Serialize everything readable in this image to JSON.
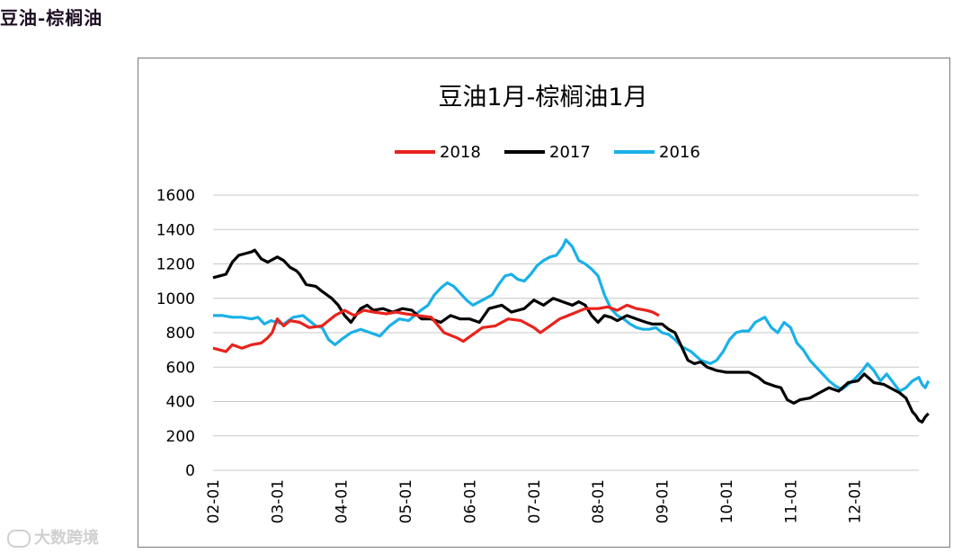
{
  "page": {
    "heading": "豆油-棕榈油",
    "watermark": "大数跨境"
  },
  "chart_data": {
    "type": "line",
    "title": "豆油1月-棕榈油1月",
    "xlabel": "",
    "ylabel": "",
    "ylim": [
      0,
      1600
    ],
    "yticks": [
      0,
      200,
      400,
      600,
      800,
      1000,
      1200,
      1400,
      1600
    ],
    "xlim": [
      0,
      11
    ],
    "xticks": [
      {
        "x": 0,
        "label": "02-01"
      },
      {
        "x": 1,
        "label": "03-01"
      },
      {
        "x": 2,
        "label": "04-01"
      },
      {
        "x": 3,
        "label": "05-01"
      },
      {
        "x": 4,
        "label": "06-01"
      },
      {
        "x": 5,
        "label": "07-01"
      },
      {
        "x": 6,
        "label": "08-01"
      },
      {
        "x": 7,
        "label": "09-01"
      },
      {
        "x": 8,
        "label": "10-01"
      },
      {
        "x": 9,
        "label": "11-01"
      },
      {
        "x": 10,
        "label": "12-01"
      }
    ],
    "grid": true,
    "legend": "top-center",
    "series": [
      {
        "name": "2018",
        "color": "#e8231c",
        "points": [
          [
            0.0,
            710
          ],
          [
            0.1,
            700
          ],
          [
            0.2,
            690
          ],
          [
            0.3,
            730
          ],
          [
            0.45,
            710
          ],
          [
            0.6,
            730
          ],
          [
            0.75,
            740
          ],
          [
            0.85,
            770
          ],
          [
            0.92,
            800
          ],
          [
            1.0,
            880
          ],
          [
            1.1,
            840
          ],
          [
            1.2,
            870
          ],
          [
            1.35,
            860
          ],
          [
            1.5,
            830
          ],
          [
            1.7,
            840
          ],
          [
            1.9,
            900
          ],
          [
            2.05,
            930
          ],
          [
            2.2,
            900
          ],
          [
            2.35,
            930
          ],
          [
            2.5,
            920
          ],
          [
            2.7,
            910
          ],
          [
            2.85,
            920
          ],
          [
            3.0,
            910
          ],
          [
            3.2,
            900
          ],
          [
            3.4,
            890
          ],
          [
            3.6,
            800
          ],
          [
            3.8,
            770
          ],
          [
            3.9,
            750
          ],
          [
            4.05,
            790
          ],
          [
            4.2,
            830
          ],
          [
            4.4,
            840
          ],
          [
            4.6,
            880
          ],
          [
            4.8,
            870
          ],
          [
            5.0,
            830
          ],
          [
            5.1,
            800
          ],
          [
            5.25,
            840
          ],
          [
            5.4,
            880
          ],
          [
            5.6,
            910
          ],
          [
            5.8,
            940
          ],
          [
            6.0,
            940
          ],
          [
            6.15,
            950
          ],
          [
            6.3,
            930
          ],
          [
            6.45,
            960
          ],
          [
            6.6,
            940
          ],
          [
            6.75,
            930
          ],
          [
            6.85,
            920
          ],
          [
            6.95,
            900
          ]
        ]
      },
      {
        "name": "2017",
        "color": "#000000",
        "points": [
          [
            0.0,
            1120
          ],
          [
            0.1,
            1130
          ],
          [
            0.2,
            1140
          ],
          [
            0.3,
            1210
          ],
          [
            0.4,
            1250
          ],
          [
            0.5,
            1260
          ],
          [
            0.6,
            1270
          ],
          [
            0.65,
            1280
          ],
          [
            0.75,
            1230
          ],
          [
            0.85,
            1210
          ],
          [
            1.0,
            1240
          ],
          [
            1.1,
            1220
          ],
          [
            1.2,
            1180
          ],
          [
            1.3,
            1160
          ],
          [
            1.35,
            1140
          ],
          [
            1.45,
            1080
          ],
          [
            1.6,
            1070
          ],
          [
            1.7,
            1040
          ],
          [
            1.85,
            1000
          ],
          [
            1.95,
            960
          ],
          [
            2.05,
            900
          ],
          [
            2.15,
            860
          ],
          [
            2.3,
            940
          ],
          [
            2.4,
            960
          ],
          [
            2.5,
            930
          ],
          [
            2.65,
            940
          ],
          [
            2.8,
            920
          ],
          [
            2.95,
            940
          ],
          [
            3.1,
            930
          ],
          [
            3.25,
            880
          ],
          [
            3.4,
            880
          ],
          [
            3.55,
            860
          ],
          [
            3.7,
            900
          ],
          [
            3.85,
            880
          ],
          [
            4.0,
            880
          ],
          [
            4.15,
            860
          ],
          [
            4.3,
            940
          ],
          [
            4.5,
            960
          ],
          [
            4.65,
            920
          ],
          [
            4.85,
            940
          ],
          [
            5.0,
            990
          ],
          [
            5.15,
            960
          ],
          [
            5.3,
            1000
          ],
          [
            5.45,
            980
          ],
          [
            5.6,
            960
          ],
          [
            5.7,
            980
          ],
          [
            5.8,
            960
          ],
          [
            5.9,
            900
          ],
          [
            6.0,
            860
          ],
          [
            6.1,
            900
          ],
          [
            6.2,
            890
          ],
          [
            6.3,
            870
          ],
          [
            6.45,
            900
          ],
          [
            6.6,
            880
          ],
          [
            6.75,
            860
          ],
          [
            6.85,
            850
          ],
          [
            7.0,
            850
          ],
          [
            7.1,
            820
          ],
          [
            7.2,
            800
          ],
          [
            7.3,
            720
          ],
          [
            7.4,
            640
          ],
          [
            7.5,
            620
          ],
          [
            7.6,
            630
          ],
          [
            7.7,
            600
          ],
          [
            7.85,
            580
          ],
          [
            8.0,
            570
          ],
          [
            8.2,
            570
          ],
          [
            8.35,
            570
          ],
          [
            8.5,
            540
          ],
          [
            8.6,
            510
          ],
          [
            8.75,
            490
          ],
          [
            8.85,
            480
          ],
          [
            8.95,
            410
          ],
          [
            9.05,
            390
          ],
          [
            9.15,
            410
          ],
          [
            9.3,
            420
          ],
          [
            9.45,
            450
          ],
          [
            9.6,
            480
          ],
          [
            9.75,
            460
          ],
          [
            9.9,
            510
          ],
          [
            10.05,
            520
          ],
          [
            10.15,
            560
          ],
          [
            10.3,
            510
          ],
          [
            10.45,
            500
          ],
          [
            10.6,
            470
          ],
          [
            10.7,
            450
          ],
          [
            10.8,
            420
          ],
          [
            10.85,
            380
          ],
          [
            10.9,
            340
          ],
          [
            10.95,
            320
          ],
          [
            11.0,
            290
          ],
          [
            11.05,
            280
          ],
          [
            11.1,
            310
          ],
          [
            11.15,
            330
          ]
        ]
      },
      {
        "name": "2016",
        "color": "#1ab0e8",
        "points": [
          [
            0.0,
            900
          ],
          [
            0.15,
            900
          ],
          [
            0.3,
            890
          ],
          [
            0.45,
            890
          ],
          [
            0.6,
            880
          ],
          [
            0.7,
            890
          ],
          [
            0.8,
            850
          ],
          [
            0.9,
            870
          ],
          [
            1.0,
            860
          ],
          [
            1.1,
            850
          ],
          [
            1.25,
            890
          ],
          [
            1.4,
            900
          ],
          [
            1.5,
            870
          ],
          [
            1.6,
            840
          ],
          [
            1.7,
            830
          ],
          [
            1.8,
            760
          ],
          [
            1.9,
            730
          ],
          [
            2.0,
            760
          ],
          [
            2.15,
            800
          ],
          [
            2.3,
            820
          ],
          [
            2.45,
            800
          ],
          [
            2.6,
            780
          ],
          [
            2.75,
            840
          ],
          [
            2.9,
            880
          ],
          [
            3.05,
            870
          ],
          [
            3.2,
            920
          ],
          [
            3.35,
            960
          ],
          [
            3.45,
            1020
          ],
          [
            3.55,
            1060
          ],
          [
            3.65,
            1090
          ],
          [
            3.75,
            1070
          ],
          [
            3.85,
            1030
          ],
          [
            3.95,
            990
          ],
          [
            4.05,
            960
          ],
          [
            4.15,
            980
          ],
          [
            4.25,
            1000
          ],
          [
            4.35,
            1020
          ],
          [
            4.45,
            1080
          ],
          [
            4.55,
            1130
          ],
          [
            4.65,
            1140
          ],
          [
            4.75,
            1110
          ],
          [
            4.85,
            1100
          ],
          [
            4.95,
            1140
          ],
          [
            5.05,
            1190
          ],
          [
            5.15,
            1220
          ],
          [
            5.25,
            1240
          ],
          [
            5.35,
            1250
          ],
          [
            5.45,
            1300
          ],
          [
            5.5,
            1340
          ],
          [
            5.6,
            1300
          ],
          [
            5.7,
            1220
          ],
          [
            5.8,
            1200
          ],
          [
            5.9,
            1170
          ],
          [
            6.0,
            1130
          ],
          [
            6.1,
            1020
          ],
          [
            6.2,
            940
          ],
          [
            6.3,
            900
          ],
          [
            6.4,
            880
          ],
          [
            6.5,
            850
          ],
          [
            6.6,
            830
          ],
          [
            6.7,
            820
          ],
          [
            6.8,
            820
          ],
          [
            6.9,
            830
          ],
          [
            7.0,
            800
          ],
          [
            7.1,
            790
          ],
          [
            7.2,
            760
          ],
          [
            7.3,
            720
          ],
          [
            7.45,
            690
          ],
          [
            7.6,
            640
          ],
          [
            7.75,
            620
          ],
          [
            7.85,
            640
          ],
          [
            7.95,
            690
          ],
          [
            8.05,
            760
          ],
          [
            8.15,
            800
          ],
          [
            8.25,
            810
          ],
          [
            8.35,
            810
          ],
          [
            8.45,
            860
          ],
          [
            8.6,
            890
          ],
          [
            8.7,
            830
          ],
          [
            8.8,
            800
          ],
          [
            8.9,
            860
          ],
          [
            9.0,
            830
          ],
          [
            9.1,
            740
          ],
          [
            9.2,
            700
          ],
          [
            9.3,
            640
          ],
          [
            9.4,
            600
          ],
          [
            9.5,
            560
          ],
          [
            9.6,
            520
          ],
          [
            9.7,
            490
          ],
          [
            9.8,
            470
          ],
          [
            9.9,
            500
          ],
          [
            10.0,
            530
          ],
          [
            10.1,
            570
          ],
          [
            10.2,
            620
          ],
          [
            10.3,
            580
          ],
          [
            10.4,
            520
          ],
          [
            10.5,
            560
          ],
          [
            10.6,
            510
          ],
          [
            10.7,
            460
          ],
          [
            10.8,
            480
          ],
          [
            10.9,
            520
          ],
          [
            11.0,
            540
          ],
          [
            11.05,
            500
          ],
          [
            11.1,
            480
          ],
          [
            11.15,
            520
          ]
        ]
      }
    ]
  }
}
